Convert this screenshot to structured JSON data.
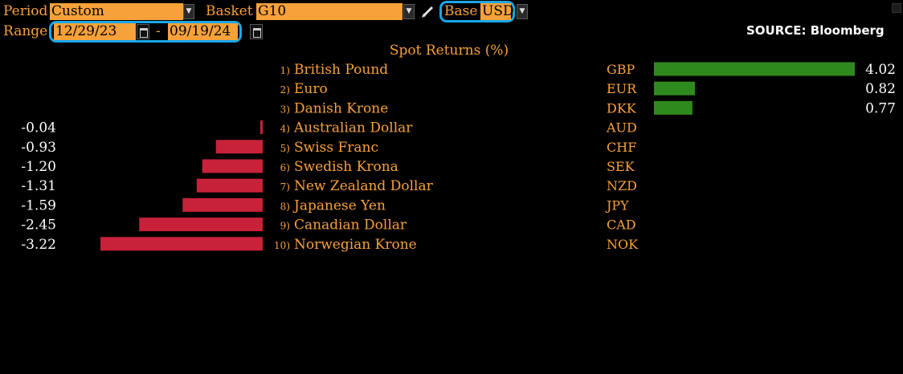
{
  "controls": {
    "period_label": "Period",
    "period_value": "Custom",
    "basket_label": "Basket",
    "basket_value": "G10",
    "base_label": "Base",
    "base_value": "USD",
    "range_label": "Range",
    "range_start": "12/29/23",
    "range_separator": "-",
    "range_end": "09/19/24"
  },
  "source": "SOURCE: Bloomberg",
  "colors": {
    "positive": "#2f8a1e",
    "negative": "#c8213a",
    "label": "#f7a13a",
    "value": "#ffffff",
    "accent_ring": "#1aa7e8"
  },
  "chart_data": {
    "type": "bar",
    "title": "Spot Returns (%)",
    "orientation": "horizontal",
    "items": [
      {
        "rank": "1)",
        "name": "British Pound",
        "code": "GBP",
        "value": 4.02,
        "label": "4.02"
      },
      {
        "rank": "2)",
        "name": "Euro",
        "code": "EUR",
        "value": 0.82,
        "label": "0.82"
      },
      {
        "rank": "3)",
        "name": "Danish Krone",
        "code": "DKK",
        "value": 0.77,
        "label": "0.77"
      },
      {
        "rank": "4)",
        "name": "Australian Dollar",
        "code": "AUD",
        "value": -0.04,
        "label": "-0.04"
      },
      {
        "rank": "5)",
        "name": "Swiss Franc",
        "code": "CHF",
        "value": -0.93,
        "label": "-0.93"
      },
      {
        "rank": "6)",
        "name": "Swedish Krona",
        "code": "SEK",
        "value": -1.2,
        "label": "-1.20"
      },
      {
        "rank": "7)",
        "name": "New Zealand Dollar",
        "code": "NZD",
        "value": -1.31,
        "label": "-1.31"
      },
      {
        "rank": "8)",
        "name": "Japanese Yen",
        "code": "JPY",
        "value": -1.59,
        "label": "-1.59"
      },
      {
        "rank": "9)",
        "name": "Canadian Dollar",
        "code": "CAD",
        "value": -2.45,
        "label": "-2.45"
      },
      {
        "rank": "10)",
        "name": "Norwegian Krone",
        "code": "NOK",
        "value": -3.22,
        "label": "-3.22"
      }
    ]
  }
}
